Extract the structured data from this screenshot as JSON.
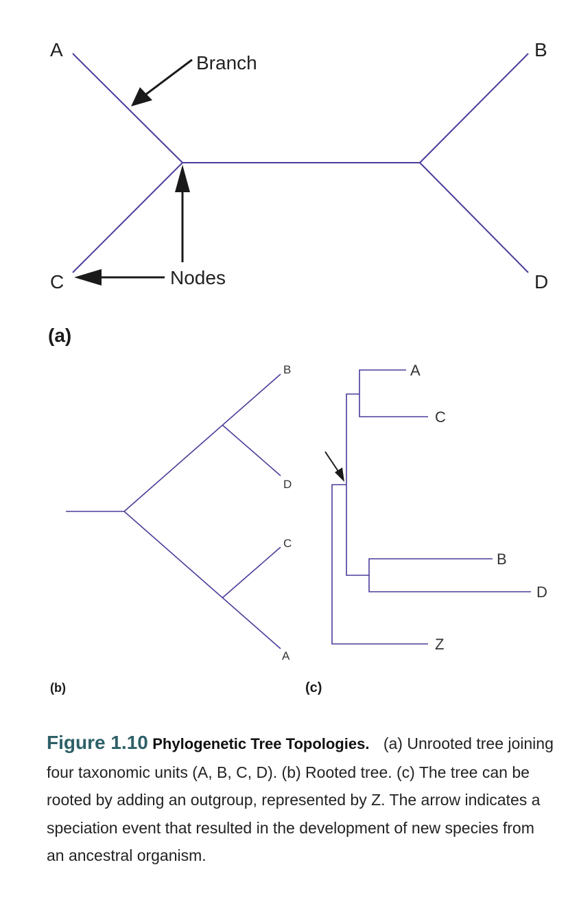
{
  "panel_a": {
    "leaf_labels": {
      "A": "A",
      "B": "B",
      "C": "C",
      "D": "D"
    },
    "callouts": {
      "branch": "Branch",
      "nodes": "Nodes"
    },
    "panel_label": "(a)"
  },
  "panel_b": {
    "leaf_labels": {
      "B": "B",
      "D": "D",
      "C": "C",
      "A": "A"
    },
    "panel_label": "(b)"
  },
  "panel_c": {
    "leaf_labels": {
      "A": "A",
      "C": "C",
      "B": "B",
      "D": "D",
      "Z": "Z"
    },
    "panel_label": "(c)"
  },
  "caption": {
    "figure_number": "Figure 1.10",
    "title": "Phylogenetic Tree Topologies.",
    "body": "(a) Unrooted tree joining four taxonomic units (A, B, C, D). (b) Rooted tree. (c) The tree can be rooted by adding an outgroup, represented by Z. The arrow indicates a speciation event that resulted in the development of new species from an ancestral organism."
  },
  "colors": {
    "tree_line": "#4b3a9a",
    "figure_number": "#2e6068"
  },
  "icons": {
    "pointer_arrow": "arrow-icon"
  }
}
